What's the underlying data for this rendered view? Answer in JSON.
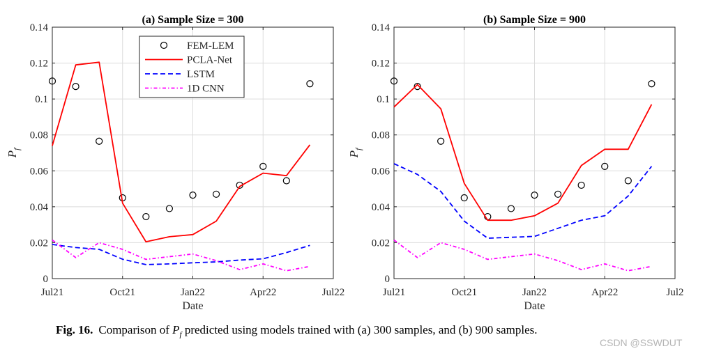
{
  "figure": {
    "caption_label": "Fig. 16.",
    "caption_text_before": "Comparison of ",
    "caption_pf_main": "P",
    "caption_pf_sub": "f",
    "caption_text_after": " predicted using models trained with (a) 300 samples, and (b) 900 samples."
  },
  "watermark": "CSDN @SSWDUT",
  "colors": {
    "fem_lem": "#000000",
    "pcla_net": "#ff0000",
    "lstm": "#0000ff",
    "cnn_1d": "#ff00ff",
    "grid": "#dcdcdc"
  },
  "chart_data": [
    {
      "type": "line",
      "title": "(a) Sample Size = 300",
      "xlabel": "Date",
      "ylabel_main": "P",
      "ylabel_sub": "f",
      "x_ticks": [
        "Jul21",
        "Oct21",
        "Jan22",
        "Apr22",
        "Jul22"
      ],
      "x_tick_months": [
        0,
        3,
        6,
        9,
        12
      ],
      "xlim": [
        0,
        12
      ],
      "ylim": [
        0,
        0.14
      ],
      "y_ticks": [
        "0",
        "0.02",
        "0.04",
        "0.06",
        "0.08",
        "0.1",
        "0.12",
        "0.14"
      ],
      "y_tick_values": [
        0,
        0.02,
        0.04,
        0.06,
        0.08,
        0.1,
        0.12,
        0.14
      ],
      "grid": true,
      "legend_location": "top-center",
      "x_months": [
        0,
        1,
        2,
        3,
        4,
        5,
        6,
        7,
        8,
        9,
        10,
        11
      ],
      "series": [
        {
          "name": "FEM-LEM",
          "style": "marker-circle",
          "color_key": "fem_lem",
          "values": [
            0.11,
            0.107,
            0.0765,
            0.045,
            0.0345,
            0.039,
            0.0465,
            0.047,
            0.052,
            0.0625,
            0.0545,
            0.1085
          ]
        },
        {
          "name": "PCLA-Net",
          "style": "solid",
          "color_key": "pcla_net",
          "values": [
            0.074,
            0.119,
            0.1205,
            0.042,
            0.0205,
            0.0233,
            0.0245,
            0.032,
            0.0513,
            0.0587,
            0.0573,
            0.0745
          ]
        },
        {
          "name": "LSTM",
          "style": "dashed",
          "color_key": "lstm",
          "values": [
            0.019,
            0.0173,
            0.0163,
            0.0108,
            0.0078,
            0.0082,
            0.0088,
            0.0093,
            0.0103,
            0.011,
            0.0145,
            0.0185
          ]
        },
        {
          "name": "1D CNN",
          "style": "dashdot",
          "color_key": "cnn_1d",
          "values": [
            0.0215,
            0.0117,
            0.02,
            0.0163,
            0.0107,
            0.0122,
            0.0137,
            0.01,
            0.005,
            0.0082,
            0.0044,
            0.0068
          ]
        }
      ]
    },
    {
      "type": "line",
      "title": "(b) Sample Size = 900",
      "xlabel": "Date",
      "ylabel_main": "P",
      "ylabel_sub": "f",
      "x_ticks": [
        "Jul21",
        "Oct21",
        "Jan22",
        "Apr22",
        "Jul2"
      ],
      "x_tick_months": [
        0,
        3,
        6,
        9,
        12
      ],
      "xlim": [
        0,
        12
      ],
      "ylim": [
        0,
        0.14
      ],
      "y_ticks": [
        "0",
        "0.02",
        "0.04",
        "0.06",
        "0.08",
        "0.1",
        "0.12",
        "0.14"
      ],
      "y_tick_values": [
        0,
        0.02,
        0.04,
        0.06,
        0.08,
        0.1,
        0.12,
        0.14
      ],
      "grid": true,
      "x_months": [
        0,
        1,
        2,
        3,
        4,
        5,
        6,
        7,
        8,
        9,
        10,
        11
      ],
      "series": [
        {
          "name": "FEM-LEM",
          "style": "marker-circle",
          "color_key": "fem_lem",
          "values": [
            0.11,
            0.107,
            0.0765,
            0.045,
            0.0345,
            0.039,
            0.0465,
            0.047,
            0.052,
            0.0625,
            0.0545,
            0.1085
          ]
        },
        {
          "name": "PCLA-Net",
          "style": "solid",
          "color_key": "pcla_net",
          "values": [
            0.0955,
            0.108,
            0.0945,
            0.053,
            0.0325,
            0.0325,
            0.035,
            0.042,
            0.063,
            0.072,
            0.072,
            0.097
          ]
        },
        {
          "name": "LSTM",
          "style": "dashed",
          "color_key": "lstm",
          "values": [
            0.064,
            0.058,
            0.0485,
            0.032,
            0.0225,
            0.023,
            0.0235,
            0.028,
            0.0325,
            0.035,
            0.046,
            0.0625
          ]
        },
        {
          "name": "1D CNN",
          "style": "dashdot",
          "color_key": "cnn_1d",
          "values": [
            0.0215,
            0.0117,
            0.02,
            0.0163,
            0.0107,
            0.0122,
            0.0137,
            0.01,
            0.005,
            0.0082,
            0.0044,
            0.0068
          ]
        }
      ]
    }
  ]
}
